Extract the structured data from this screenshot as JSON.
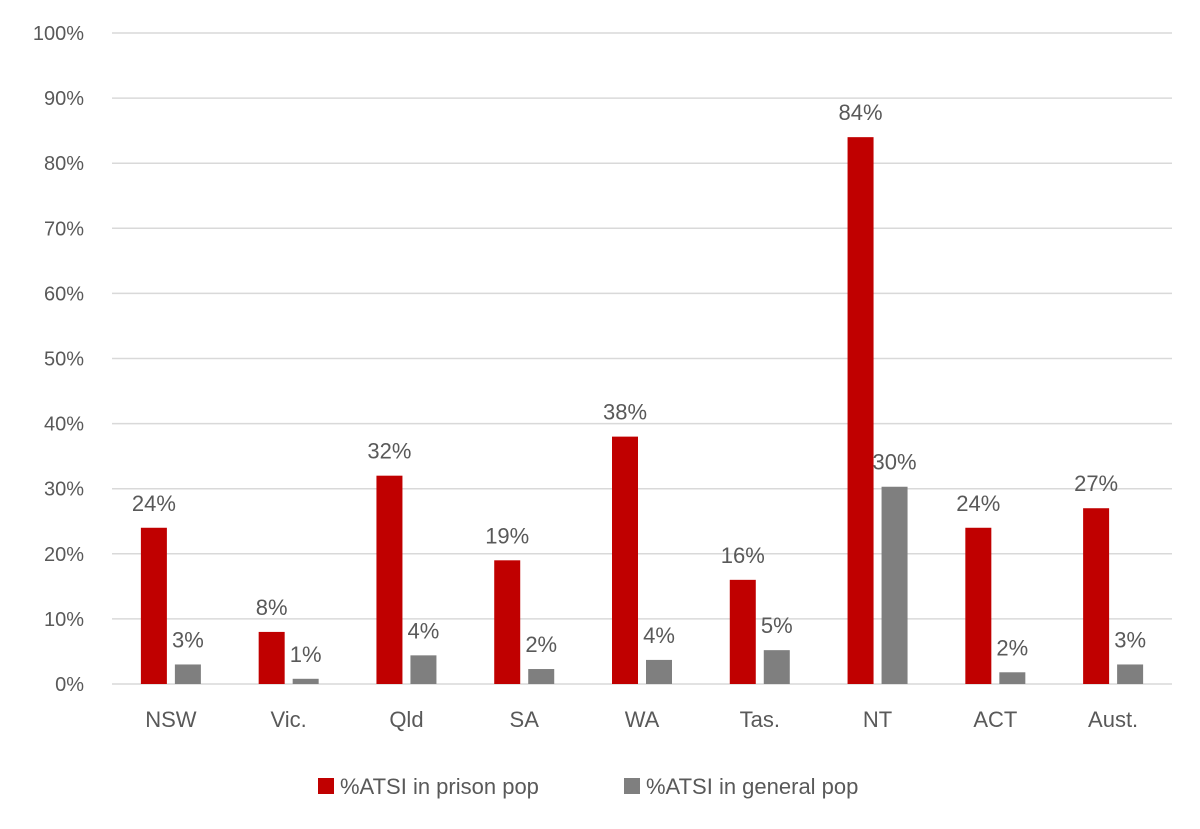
{
  "chart_data": {
    "type": "bar",
    "categories": [
      "NSW",
      "Vic.",
      "Qld",
      "SA",
      "WA",
      "Tas.",
      "NT",
      "ACT",
      "Aust."
    ],
    "series": [
      {
        "name": "%ATSI in prison pop",
        "color": "#c00000",
        "values": [
          24,
          8,
          32,
          19,
          38,
          16,
          84,
          24,
          27
        ],
        "labels": [
          "24%",
          "8%",
          "32%",
          "19%",
          "38%",
          "16%",
          "84%",
          "24%",
          "27%"
        ]
      },
      {
        "name": "%ATSI in general pop",
        "color": "#7f7f7f",
        "values": [
          3.0,
          0.8,
          4.4,
          2.3,
          3.7,
          5.2,
          30.3,
          1.8,
          3.0
        ],
        "labels": [
          "3%",
          "1%",
          "4%",
          "2%",
          "4%",
          "5%",
          "30%",
          "2%",
          "3%"
        ]
      }
    ],
    "ylim": [
      0,
      100
    ],
    "yticks": [
      "0%",
      "10%",
      "20%",
      "30%",
      "40%",
      "50%",
      "60%",
      "70%",
      "80%",
      "90%",
      "100%"
    ],
    "grid": true,
    "legend_position": "bottom",
    "title": "",
    "xlabel": "",
    "ylabel": ""
  }
}
